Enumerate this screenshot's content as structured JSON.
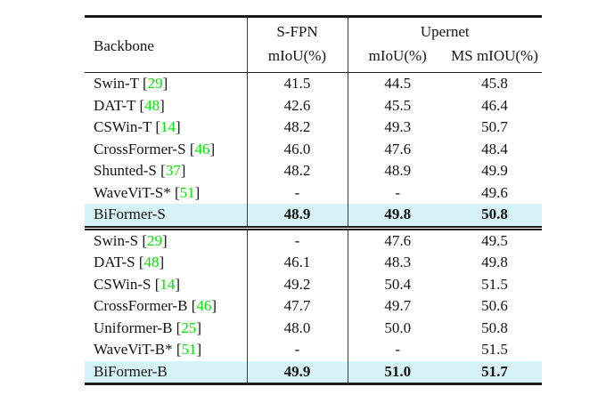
{
  "colors": {
    "highlight": "#d8f3f8",
    "citation": "#00e600"
  },
  "table": {
    "header": {
      "backbone": "Backbone",
      "sfpn_group": "S-FPN",
      "sfpn_sub": "mIoU(%)",
      "upernet_group": "Upernet",
      "upernet_miou": "mIoU(%)",
      "upernet_ms": "MS mIOU(%)"
    },
    "sections": [
      {
        "rows": [
          {
            "name": "Swin-T",
            "cite": "29",
            "sfpn": "41.5",
            "miou": "44.5",
            "ms": "45.8",
            "highlight": false,
            "bold": false
          },
          {
            "name": "DAT-T",
            "cite": "48",
            "sfpn": "42.6",
            "miou": "45.5",
            "ms": "46.4",
            "highlight": false,
            "bold": false
          },
          {
            "name": "CSWin-T",
            "cite": "14",
            "sfpn": "48.2",
            "miou": "49.3",
            "ms": "50.7",
            "highlight": false,
            "bold": false
          },
          {
            "name": "CrossFormer-S",
            "cite": "46",
            "sfpn": "46.0",
            "miou": "47.6",
            "ms": "48.4",
            "highlight": false,
            "bold": false
          },
          {
            "name": "Shunted-S",
            "cite": "37",
            "sfpn": "48.2",
            "miou": "48.9",
            "ms": "49.9",
            "highlight": false,
            "bold": false
          },
          {
            "name": "WaveViT-S*",
            "cite": "51",
            "sfpn": "-",
            "miou": "-",
            "ms": "49.6",
            "highlight": false,
            "bold": false
          },
          {
            "name": "BiFormer-S",
            "cite": "",
            "sfpn": "48.9",
            "miou": "49.8",
            "ms": "50.8",
            "highlight": true,
            "bold": true
          }
        ]
      },
      {
        "rows": [
          {
            "name": "Swin-S",
            "cite": "29",
            "sfpn": "-",
            "miou": "47.6",
            "ms": "49.5",
            "highlight": false,
            "bold": false
          },
          {
            "name": "DAT-S",
            "cite": "48",
            "sfpn": "46.1",
            "miou": "48.3",
            "ms": "49.8",
            "highlight": false,
            "bold": false
          },
          {
            "name": "CSWin-S",
            "cite": "14",
            "sfpn": "49.2",
            "miou": "50.4",
            "ms": "51.5",
            "highlight": false,
            "bold": false
          },
          {
            "name": "CrossFormer-B",
            "cite": "46",
            "sfpn": "47.7",
            "miou": "49.7",
            "ms": "50.6",
            "highlight": false,
            "bold": false
          },
          {
            "name": "Uniformer-B",
            "cite": "25",
            "sfpn": "48.0",
            "miou": "50.0",
            "ms": "50.8",
            "highlight": false,
            "bold": false
          },
          {
            "name": "WaveViT-B*",
            "cite": "51",
            "sfpn": "-",
            "miou": "-",
            "ms": "51.5",
            "highlight": false,
            "bold": false
          },
          {
            "name": "BiFormer-B",
            "cite": "",
            "sfpn": "49.9",
            "miou": "51.0",
            "ms": "51.7",
            "highlight": true,
            "bold": true
          }
        ]
      }
    ]
  }
}
